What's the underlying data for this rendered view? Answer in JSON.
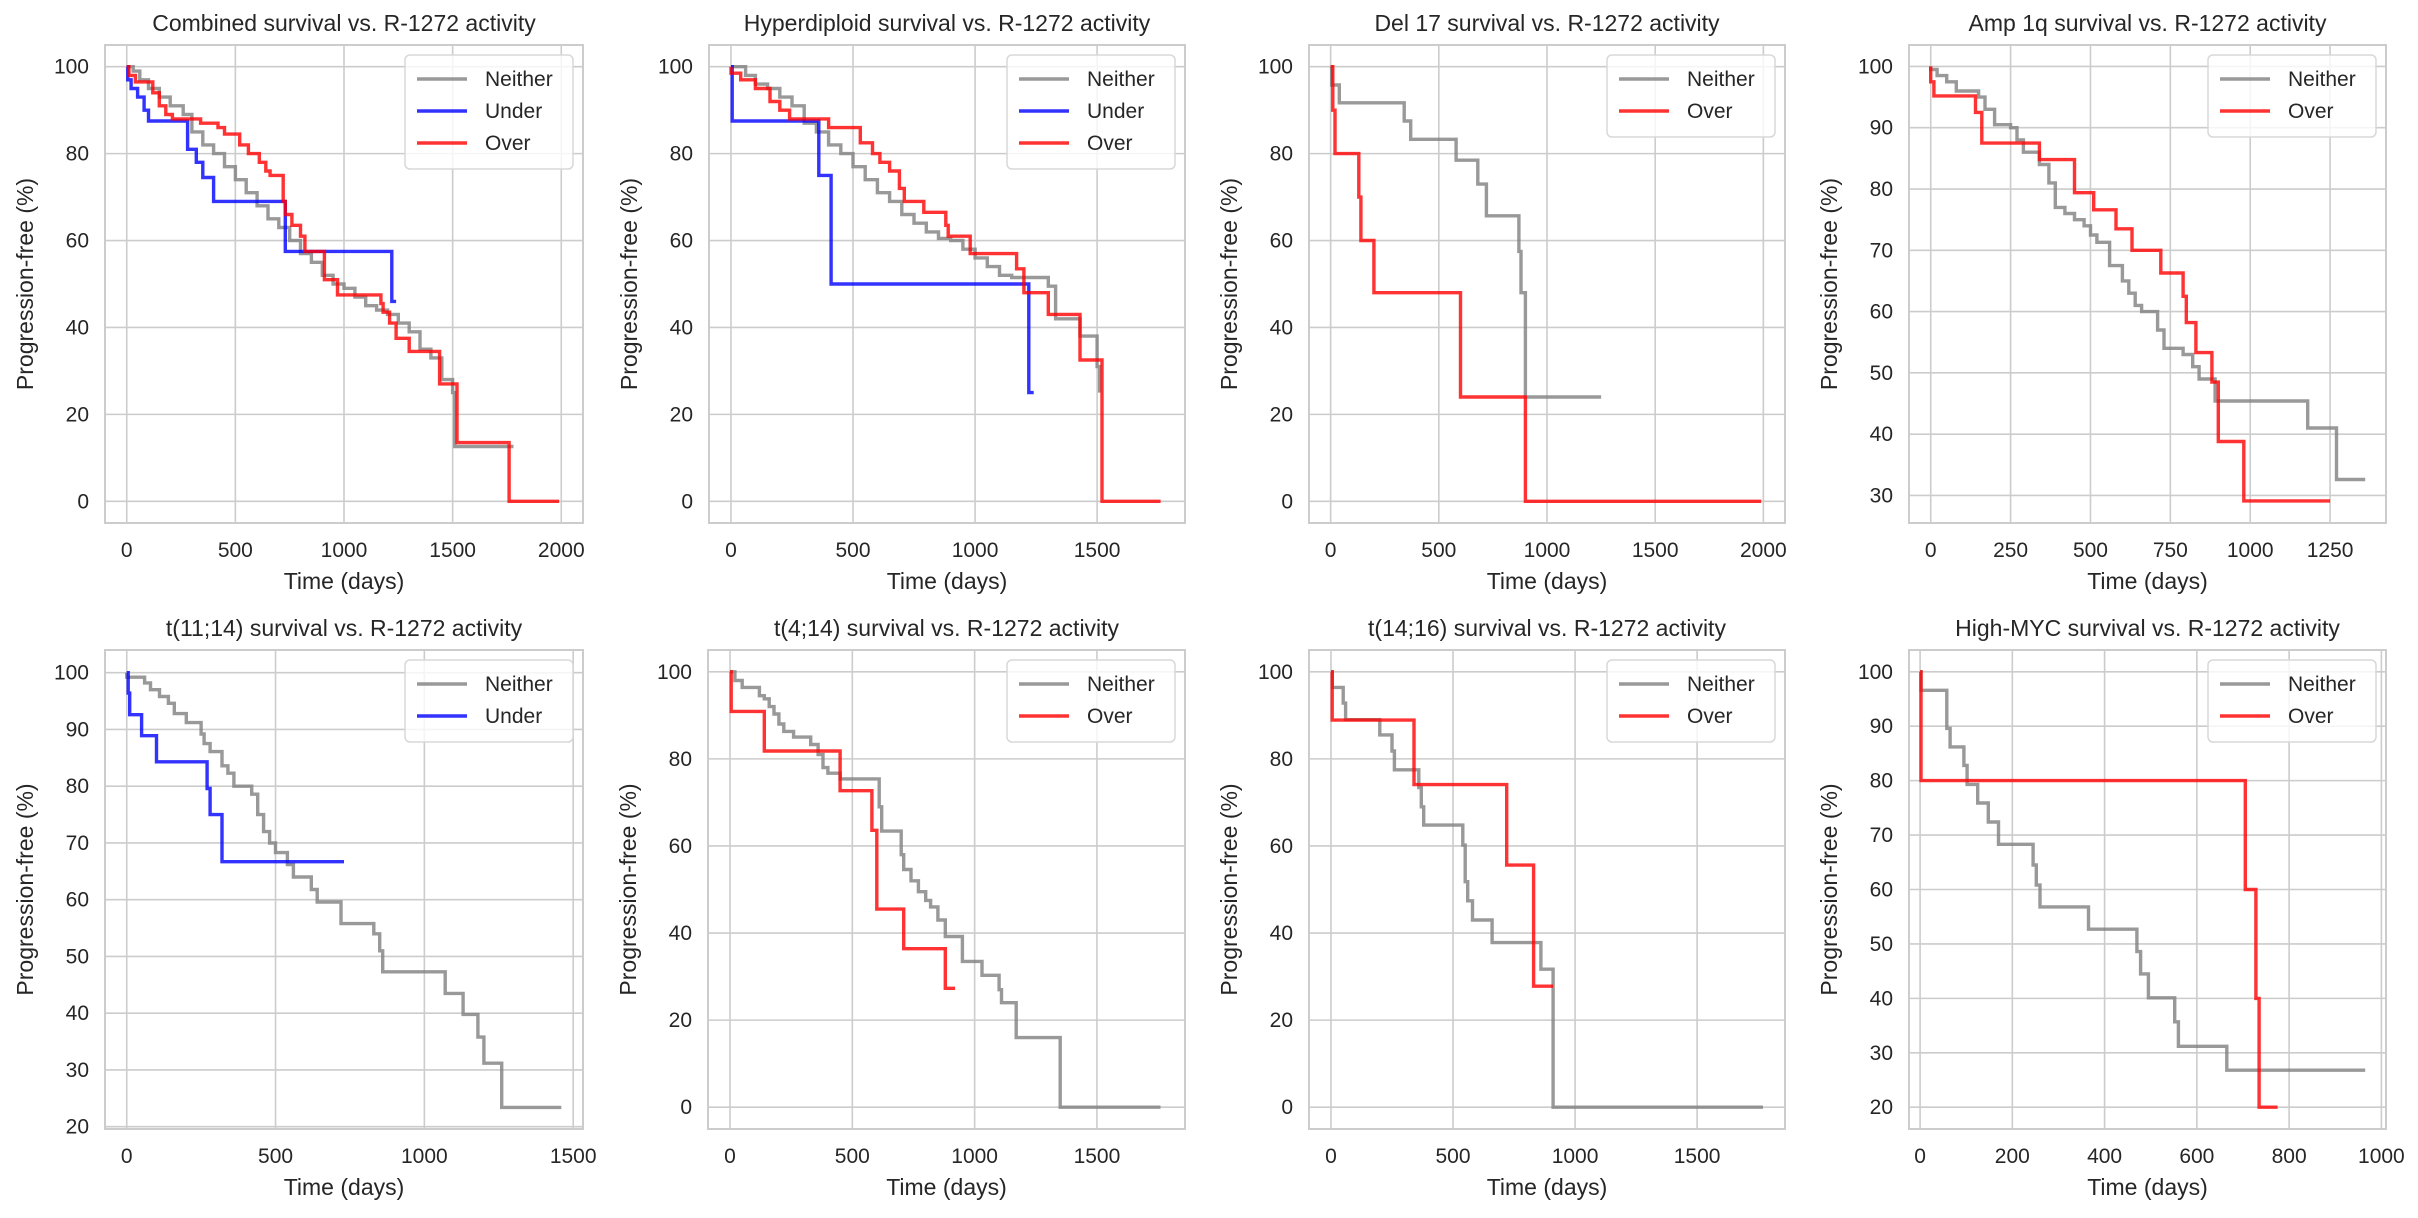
{
  "figure": {
    "colors": {
      "Neither": "#808080",
      "Under": "#0000ff",
      "Over": "#ff0000"
    }
  },
  "chart_data": [
    {
      "type": "line",
      "title": "Combined survival vs. R-1272 activity",
      "xlabel": "Time (days)",
      "ylabel": "Progression-free (%)",
      "xlim": [
        -100,
        2100
      ],
      "ylim": [
        -5,
        105
      ],
      "xticks": [
        0,
        500,
        1000,
        1500,
        2000
      ],
      "yticks": [
        0,
        20,
        40,
        60,
        80,
        100
      ],
      "grid": true,
      "legend": "top-right",
      "series": [
        {
          "name": "Neither",
          "x": [
            0,
            30,
            60,
            100,
            150,
            200,
            260,
            300,
            350,
            400,
            450,
            500,
            550,
            600,
            650,
            700,
            750,
            800,
            850,
            900,
            950,
            1000,
            1050,
            1100,
            1150,
            1200,
            1250,
            1300,
            1350,
            1400,
            1450,
            1500,
            1510,
            1780
          ],
          "y": [
            100,
            99,
            97,
            95,
            93,
            91,
            89,
            85,
            82,
            80,
            77,
            74,
            71,
            68,
            65,
            63,
            60,
            57,
            55,
            52,
            50,
            49,
            47,
            45,
            44,
            43,
            41,
            39,
            35,
            33,
            28,
            25,
            12.6,
            12.6
          ]
        },
        {
          "name": "Under",
          "x": [
            0,
            5,
            20,
            50,
            80,
            100,
            270,
            280,
            320,
            350,
            400,
            720,
            730,
            1220,
            1240
          ],
          "y": [
            100,
            97,
            95,
            93,
            90,
            87.5,
            87.5,
            81,
            78,
            74.5,
            69,
            69,
            57.5,
            46,
            46
          ]
        },
        {
          "name": "Over",
          "x": [
            0,
            10,
            40,
            120,
            150,
            180,
            210,
            260,
            300,
            340,
            420,
            450,
            520,
            560,
            610,
            640,
            660,
            700,
            720,
            730,
            760,
            800,
            820,
            890,
            910,
            970,
            1170,
            1180,
            1210,
            1240,
            1300,
            1430,
            1440,
            1520,
            1750,
            1760,
            1990
          ],
          "y": [
            100,
            98,
            96.5,
            94,
            91,
            89,
            88,
            88,
            88,
            87,
            86,
            84.5,
            82,
            80,
            78,
            76,
            75,
            75,
            69,
            66,
            63.5,
            61,
            57.5,
            57.5,
            51,
            47.5,
            45.5,
            43.5,
            41,
            37.5,
            34.5,
            34.5,
            27,
            13.5,
            13.5,
            0,
            0
          ]
        }
      ]
    },
    {
      "type": "line",
      "title": "Hyperdiploid survival vs. R-1272 activity",
      "xlabel": "Time (days)",
      "ylabel": "Progression-free (%)",
      "xlim": [
        -90,
        1860
      ],
      "ylim": [
        -5,
        105
      ],
      "xticks": [
        0,
        500,
        1000,
        1500
      ],
      "yticks": [
        0,
        20,
        40,
        60,
        80,
        100
      ],
      "grid": true,
      "legend": "top-right",
      "series": [
        {
          "name": "Neither",
          "x": [
            0,
            60,
            100,
            150,
            200,
            250,
            300,
            350,
            400,
            450,
            500,
            550,
            600,
            650,
            700,
            750,
            800,
            850,
            900,
            950,
            1000,
            1050,
            1100,
            1150,
            1200,
            1300,
            1330,
            1430,
            1500,
            1510
          ],
          "y": [
            100,
            98,
            96,
            95,
            93,
            91,
            87,
            85,
            82,
            80,
            77,
            74,
            71,
            69,
            66,
            64,
            62,
            60.5,
            60,
            58,
            56,
            54,
            52,
            51.5,
            51.5,
            49.5,
            42,
            38,
            31,
            25
          ]
        },
        {
          "name": "Under",
          "x": [
            0,
            5,
            350,
            360,
            400,
            410,
            1210,
            1220,
            1240
          ],
          "y": [
            100,
            87.5,
            87.5,
            75,
            75,
            50,
            50,
            25,
            25
          ]
        },
        {
          "name": "Over",
          "x": [
            0,
            40,
            100,
            160,
            200,
            240,
            400,
            520,
            530,
            580,
            610,
            650,
            690,
            710,
            790,
            880,
            890,
            980,
            1170,
            1200,
            1300,
            1430,
            1510,
            1520,
            1760
          ],
          "y": [
            98.5,
            97,
            95,
            92,
            90,
            88,
            86,
            86,
            82.5,
            80,
            78,
            76,
            72,
            69,
            66.5,
            63.5,
            61,
            57,
            53.5,
            48,
            43,
            32.5,
            32.5,
            0,
            0
          ]
        }
      ]
    },
    {
      "type": "line",
      "title": "Del 17 survival vs. R-1272 activity",
      "xlabel": "Time (days)",
      "ylabel": "Progression-free (%)",
      "xlim": [
        -100,
        2100
      ],
      "ylim": [
        -5,
        105
      ],
      "xticks": [
        0,
        500,
        1000,
        1500,
        2000
      ],
      "yticks": [
        0,
        20,
        40,
        60,
        80,
        100
      ],
      "grid": true,
      "legend": "top-right",
      "series": [
        {
          "name": "Neither",
          "x": [
            0,
            5,
            40,
            340,
            370,
            580,
            680,
            720,
            870,
            880,
            900,
            910,
            1250
          ],
          "y": [
            100,
            95.8,
            91.7,
            87.5,
            83.3,
            78.5,
            73,
            65.7,
            57.5,
            48,
            24,
            24,
            24
          ]
        },
        {
          "name": "Over",
          "x": [
            0,
            10,
            20,
            130,
            140,
            200,
            600,
            900,
            1990
          ],
          "y": [
            100,
            90,
            80,
            70,
            60,
            48,
            24,
            0,
            0
          ]
        }
      ]
    },
    {
      "type": "line",
      "title": "Amp 1q survival vs. R-1272 activity",
      "xlabel": "Time (days)",
      "ylabel": "Progression-free (%)",
      "xlim": [
        -68,
        1425
      ],
      "ylim": [
        25.5,
        103.5
      ],
      "xticks": [
        0,
        250,
        500,
        750,
        1000,
        1250
      ],
      "yticks": [
        30,
        40,
        50,
        60,
        70,
        80,
        90,
        100
      ],
      "grid": true,
      "legend": "top-right",
      "series": [
        {
          "name": "Neither",
          "x": [
            0,
            20,
            50,
            80,
            150,
            170,
            200,
            250,
            270,
            290,
            340,
            370,
            390,
            420,
            450,
            480,
            500,
            520,
            560,
            600,
            620,
            640,
            660,
            710,
            730,
            750,
            790,
            820,
            840,
            880,
            890,
            900,
            1170,
            1180,
            1260,
            1270,
            1360
          ],
          "y": [
            99.5,
            98.5,
            97.5,
            96,
            95,
            93,
            90.5,
            90,
            88,
            86,
            84,
            81,
            77,
            76,
            75,
            74,
            72.5,
            71.3,
            67.5,
            65,
            63,
            61,
            60,
            57,
            54,
            54,
            53,
            51,
            49,
            49,
            45.4,
            45.4,
            45.4,
            41,
            41,
            32.6,
            32.6
          ]
        },
        {
          "name": "Over",
          "x": [
            0,
            10,
            20,
            140,
            160,
            340,
            450,
            510,
            580,
            630,
            720,
            790,
            800,
            830,
            880,
            900,
            980,
            1250
          ],
          "y": [
            97.5,
            95.2,
            95.2,
            92.5,
            87.5,
            84.8,
            79.4,
            76.6,
            73.5,
            70,
            66.3,
            62.5,
            58.2,
            53.3,
            48.5,
            38.8,
            29.1,
            29.1
          ]
        }
      ]
    },
    {
      "type": "line",
      "title": "t(11;14) survival vs. R-1272 activity",
      "xlabel": "Time (days)",
      "ylabel": "Progression-free (%)",
      "xlim": [
        -73,
        1533
      ],
      "ylim": [
        19.6,
        104
      ],
      "xticks": [
        0,
        500,
        1000,
        1500
      ],
      "yticks": [
        20,
        30,
        40,
        50,
        60,
        70,
        80,
        90,
        100
      ],
      "grid": true,
      "legend": "top-right",
      "series": [
        {
          "name": "Neither",
          "x": [
            0,
            60,
            80,
            110,
            140,
            160,
            200,
            250,
            260,
            280,
            320,
            340,
            360,
            420,
            440,
            460,
            480,
            500,
            540,
            560,
            620,
            640,
            720,
            830,
            850,
            860,
            880,
            1070,
            1130,
            1180,
            1200,
            1260,
            1460
          ],
          "y": [
            99.2,
            98.2,
            97,
            95.8,
            94.6,
            92.8,
            91.2,
            89.2,
            87.5,
            86.1,
            83.6,
            82.3,
            80,
            78.6,
            75,
            72,
            70,
            68.3,
            66.2,
            64,
            61.8,
            59.6,
            55.8,
            54,
            51,
            47.3,
            47.3,
            43.5,
            39.8,
            35.8,
            31.2,
            23.4,
            23.4
          ]
        },
        {
          "name": "Under",
          "x": [
            0,
            5,
            10,
            50,
            100,
            270,
            280,
            320,
            730
          ],
          "y": [
            100,
            96.4,
            92.6,
            88.9,
            84.3,
            79.6,
            75,
            66.7,
            66.7
          ]
        }
      ]
    },
    {
      "type": "line",
      "title": "t(4;14) survival vs. R-1272 activity",
      "xlabel": "Time (days)",
      "ylabel": "Progression-free (%)",
      "xlim": [
        -90,
        1860
      ],
      "ylim": [
        -5,
        105
      ],
      "xticks": [
        0,
        500,
        1000,
        1500
      ],
      "yticks": [
        0,
        20,
        40,
        60,
        80,
        100
      ],
      "grid": true,
      "legend": "top-right",
      "series": [
        {
          "name": "Neither",
          "x": [
            0,
            20,
            50,
            120,
            140,
            160,
            180,
            200,
            220,
            260,
            280,
            330,
            360,
            380,
            400,
            450,
            600,
            610,
            620,
            700,
            710,
            740,
            770,
            800,
            820,
            850,
            880,
            950,
            1030,
            1100,
            1110,
            1170,
            1350,
            1760
          ],
          "y": [
            100,
            98,
            96.4,
            94.5,
            93.8,
            92,
            90.3,
            88,
            86.3,
            85,
            85,
            83.3,
            81,
            78,
            76.7,
            75.4,
            75.4,
            69,
            63.4,
            58,
            54.6,
            52,
            49.5,
            47.5,
            46,
            43,
            39.2,
            33.5,
            30.3,
            27,
            24,
            16,
            0,
            0
          ]
        },
        {
          "name": "Over",
          "x": [
            0,
            5,
            140,
            450,
            580,
            600,
            710,
            880,
            920
          ],
          "y": [
            100,
            90.9,
            81.8,
            72.7,
            63.6,
            45.5,
            36.4,
            27.3,
            27.3
          ]
        }
      ]
    },
    {
      "type": "line",
      "title": "t(14;16) survival vs. R-1272 activity",
      "xlabel": "Time (days)",
      "ylabel": "Progression-free (%)",
      "xlim": [
        -90,
        1860
      ],
      "ylim": [
        -5,
        105
      ],
      "xticks": [
        0,
        500,
        1000,
        1500
      ],
      "yticks": [
        0,
        20,
        40,
        60,
        80,
        100
      ],
      "grid": true,
      "legend": "top-right",
      "series": [
        {
          "name": "Neither",
          "x": [
            0,
            5,
            50,
            60,
            200,
            250,
            260,
            360,
            370,
            380,
            390,
            540,
            550,
            560,
            580,
            590,
            660,
            860,
            870,
            910,
            1770
          ],
          "y": [
            100,
            96.4,
            92.8,
            89,
            85.5,
            81.8,
            77.5,
            73.4,
            69,
            64.8,
            64.8,
            60.2,
            51.8,
            47.4,
            43,
            43,
            37.8,
            31.7,
            31.7,
            0,
            0
          ]
        },
        {
          "name": "Over",
          "x": [
            0,
            5,
            340,
            720,
            830,
            910
          ],
          "y": [
            100,
            88.9,
            74.1,
            55.6,
            27.8,
            27.8
          ]
        }
      ]
    },
    {
      "type": "line",
      "title": "High-MYC survival vs. R-1272 activity",
      "xlabel": "Time (days)",
      "ylabel": "Progression-free (%)",
      "xlim": [
        -24,
        1010
      ],
      "ylim": [
        16,
        104
      ],
      "xticks": [
        0,
        200,
        400,
        600,
        800,
        1000
      ],
      "yticks": [
        20,
        30,
        40,
        50,
        60,
        70,
        80,
        90,
        100
      ],
      "grid": true,
      "legend": "top-right",
      "series": [
        {
          "name": "Neither",
          "x": [
            0,
            2,
            58,
            65,
            95,
            102,
            108,
            125,
            148,
            170,
            245,
            252,
            260,
            365,
            470,
            478,
            495,
            552,
            560,
            665,
            965
          ],
          "y": [
            100,
            96.6,
            89.6,
            86.2,
            82.8,
            79.3,
            79.3,
            75.9,
            72.4,
            68.3,
            64.5,
            60.8,
            56.8,
            52.7,
            48.6,
            44.5,
            40.1,
            35.7,
            31.2,
            26.8,
            26.8
          ]
        },
        {
          "name": "Over",
          "x": [
            0,
            2,
            705,
            728,
            735,
            775
          ],
          "y": [
            100,
            80,
            60,
            40,
            20,
            20
          ]
        }
      ]
    }
  ]
}
